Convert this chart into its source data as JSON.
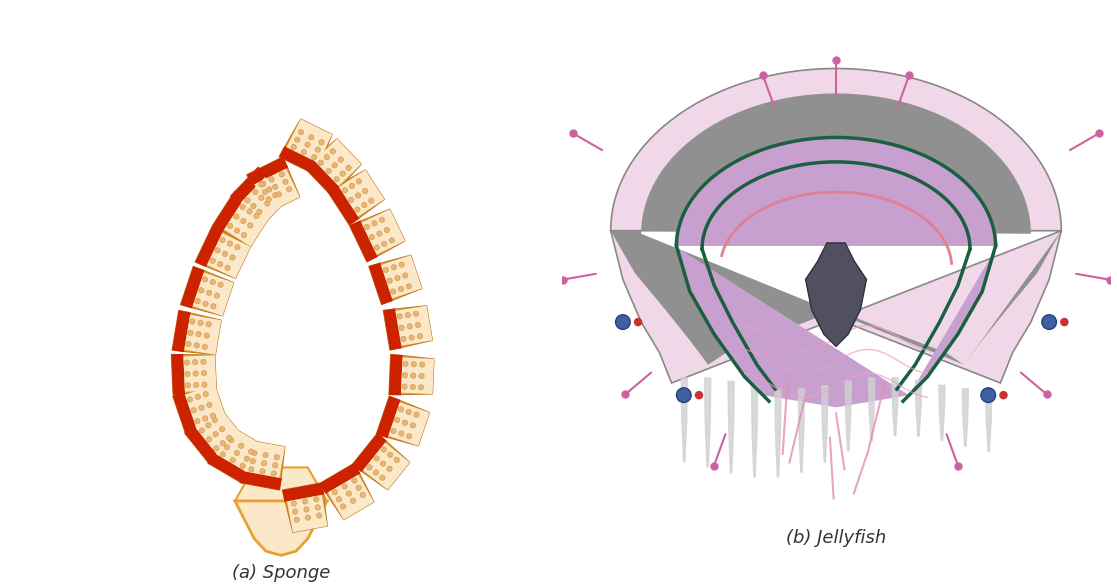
{
  "title_a": "(a) Sponge",
  "title_b": "(b) Jellyfish",
  "title_fontsize": 13,
  "background_color": "#ffffff",
  "sponge": {
    "outer_color": "#E8A030",
    "inner_color": "#F5D5A0",
    "pale_inner": "#FAE8C8",
    "red_color": "#CC2200",
    "dot_color": "#E8B870",
    "base_color": "#E8A030"
  },
  "jellyfish": {
    "outer_bell_color": "#F0D8E8",
    "mesoglea_color": "#909090",
    "gastro_color": "#C8A0D0",
    "inner_line_color": "#1A6040",
    "manubrium_color": "#505070",
    "tentacle_color": "#D0D0D0",
    "pink_tentacle_color": "#E090B0",
    "pink_line_color": "#E0A0B0"
  }
}
